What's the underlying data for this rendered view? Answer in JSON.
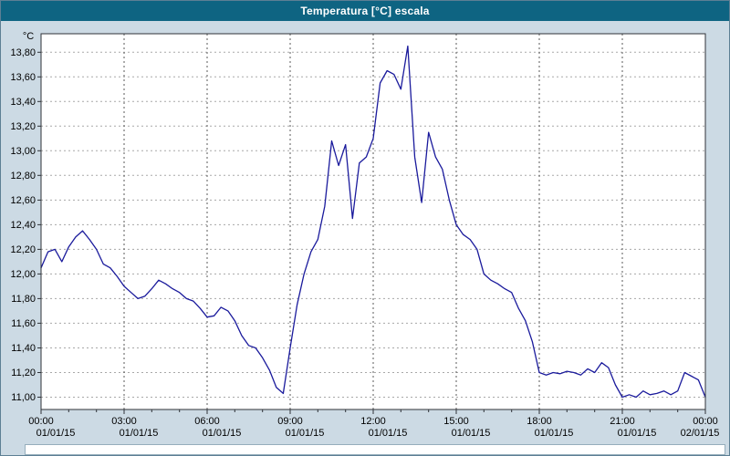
{
  "window": {
    "title": "Temperatura [°C] escala"
  },
  "colors": {
    "titlebar": "#0e6482",
    "background": "#ccdae4",
    "plot_bg": "#ffffff",
    "line": "#1a1a9c",
    "grid_h": "#a8a8a8",
    "grid_v": "#5a5a5a",
    "border": "#2f3338",
    "text": "#000000"
  },
  "chart_data": {
    "type": "line",
    "title": "Temperatura [°C] escala",
    "unit_label": "°C",
    "xlabel": "",
    "ylabel": "°C",
    "grid": "dashed",
    "legend": "none",
    "xlim": [
      0,
      24
    ],
    "ylim": [
      10.9,
      13.95
    ],
    "yticks": [
      {
        "value": 11.0,
        "label": "11,00"
      },
      {
        "value": 11.2,
        "label": "11,20"
      },
      {
        "value": 11.4,
        "label": "11,40"
      },
      {
        "value": 11.6,
        "label": "11,60"
      },
      {
        "value": 11.8,
        "label": "11,80"
      },
      {
        "value": 12.0,
        "label": "12,00"
      },
      {
        "value": 12.2,
        "label": "12,20"
      },
      {
        "value": 12.4,
        "label": "12,40"
      },
      {
        "value": 12.6,
        "label": "12,60"
      },
      {
        "value": 12.8,
        "label": "12,80"
      },
      {
        "value": 13.0,
        "label": "13,00"
      },
      {
        "value": 13.2,
        "label": "13,20"
      },
      {
        "value": 13.4,
        "label": "13,40"
      },
      {
        "value": 13.6,
        "label": "13,60"
      },
      {
        "value": 13.8,
        "label": "13,80"
      }
    ],
    "xticks": [
      {
        "hour": 0,
        "time": "00:00",
        "date": "01/01/15"
      },
      {
        "hour": 3,
        "time": "03:00",
        "date": "01/01/15"
      },
      {
        "hour": 6,
        "time": "06:00",
        "date": "01/01/15"
      },
      {
        "hour": 9,
        "time": "09:00",
        "date": "01/01/15"
      },
      {
        "hour": 12,
        "time": "12:00",
        "date": "01/01/15"
      },
      {
        "hour": 15,
        "time": "15:00",
        "date": "01/01/15"
      },
      {
        "hour": 18,
        "time": "18:00",
        "date": "01/01/15"
      },
      {
        "hour": 21,
        "time": "21:00",
        "date": "01/01/15"
      },
      {
        "hour": 24,
        "time": "00:00",
        "date": "02/01/15"
      }
    ],
    "series": [
      {
        "name": "Temperatura",
        "color": "#1a1a9c",
        "x": [
          0,
          0.25,
          0.5,
          0.75,
          1,
          1.25,
          1.5,
          1.75,
          2,
          2.25,
          2.5,
          2.75,
          3,
          3.25,
          3.5,
          3.75,
          4,
          4.25,
          4.5,
          4.75,
          5,
          5.25,
          5.5,
          5.75,
          6,
          6.25,
          6.5,
          6.75,
          7,
          7.25,
          7.5,
          7.75,
          8,
          8.25,
          8.5,
          8.75,
          9,
          9.25,
          9.5,
          9.75,
          10,
          10.25,
          10.5,
          10.75,
          11,
          11.25,
          11.5,
          11.75,
          12,
          12.25,
          12.5,
          12.75,
          13,
          13.25,
          13.5,
          13.75,
          14,
          14.25,
          14.5,
          14.75,
          15,
          15.25,
          15.5,
          15.75,
          16,
          16.25,
          16.5,
          16.75,
          17,
          17.25,
          17.5,
          17.75,
          18,
          18.25,
          18.5,
          18.75,
          19,
          19.25,
          19.5,
          19.75,
          20,
          20.25,
          20.5,
          20.75,
          21,
          21.25,
          21.5,
          21.75,
          22,
          22.25,
          22.5,
          22.75,
          23,
          23.25,
          23.5,
          23.75,
          24
        ],
        "y": [
          12.05,
          12.18,
          12.2,
          12.1,
          12.22,
          12.3,
          12.35,
          12.28,
          12.2,
          12.08,
          12.05,
          11.98,
          11.9,
          11.85,
          11.8,
          11.82,
          11.88,
          11.95,
          11.92,
          11.88,
          11.85,
          11.8,
          11.78,
          11.72,
          11.65,
          11.66,
          11.73,
          11.7,
          11.62,
          11.5,
          11.42,
          11.4,
          11.32,
          11.22,
          11.08,
          11.03,
          11.4,
          11.75,
          12.0,
          12.18,
          12.28,
          12.55,
          13.08,
          12.88,
          13.05,
          12.45,
          12.9,
          12.95,
          13.1,
          13.55,
          13.65,
          13.62,
          13.5,
          13.85,
          12.95,
          12.58,
          13.15,
          12.95,
          12.85,
          12.6,
          12.4,
          12.32,
          12.28,
          12.2,
          12.0,
          11.95,
          11.92,
          11.88,
          11.85,
          11.72,
          11.62,
          11.45,
          11.2,
          11.18,
          11.2,
          11.19,
          11.21,
          11.2,
          11.18,
          11.23,
          11.2,
          11.28,
          11.24,
          11.1,
          11.0,
          11.02,
          11.0,
          11.05,
          11.02,
          11.03,
          11.05,
          11.02,
          11.05,
          11.2,
          11.17,
          11.14,
          11.0
        ]
      }
    ]
  }
}
